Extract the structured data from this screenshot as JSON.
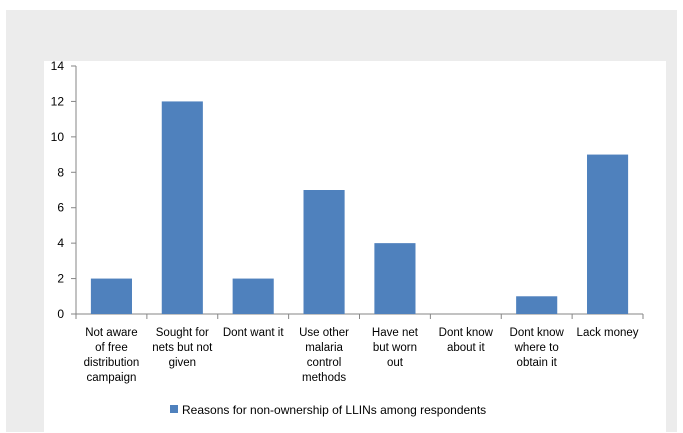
{
  "chart_data": {
    "type": "bar",
    "categories": [
      [
        "Not aware",
        "of free",
        "distribution",
        "campaign"
      ],
      [
        "Sought for",
        "nets but not",
        "given"
      ],
      [
        "Dont want it"
      ],
      [
        "Use other",
        "malaria",
        "control",
        "methods"
      ],
      [
        "Have net",
        "but worn",
        "out"
      ],
      [
        "Dont know",
        "about it"
      ],
      [
        "Dont know",
        "where to",
        "obtain it"
      ],
      [
        "Lack money"
      ]
    ],
    "series": [
      {
        "name": "Reasons for non-ownership of LLINs among respondents",
        "values": [
          2,
          12,
          2,
          7,
          4,
          0,
          1,
          9
        ]
      }
    ],
    "ylim": [
      0,
      14
    ],
    "yticks": [
      0,
      2,
      4,
      6,
      8,
      10,
      12,
      14
    ],
    "grid": false,
    "legend_position": "bottom",
    "colors": {
      "bar": "#4f81bd",
      "axis": "#868686"
    }
  }
}
